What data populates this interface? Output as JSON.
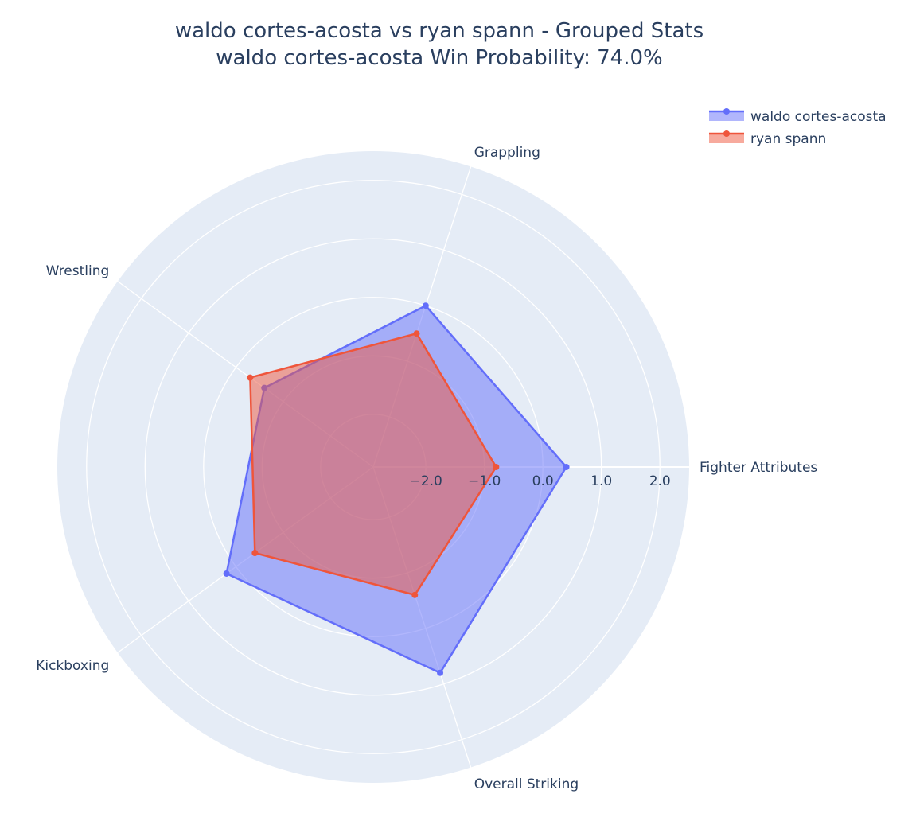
{
  "chart_data": {
    "type": "radar",
    "title": "waldo cortes-acosta vs ryan spann - Grouped Stats",
    "subtitle": "waldo cortes-acosta Win Probability: 74.0%",
    "categories": [
      "Fighter Attributes",
      "Overall Striking",
      "Kickboxing",
      "Wrestling",
      "Grappling"
    ],
    "radial_range": [
      -2.9,
      2.5
    ],
    "radial_ticks": [
      {
        "value": -2.0,
        "label": "−2.0"
      },
      {
        "value": -1.0,
        "label": "−1.0"
      },
      {
        "value": 0.0,
        "label": "0.0"
      },
      {
        "value": 1.0,
        "label": "1.0"
      },
      {
        "value": 2.0,
        "label": "2.0"
      }
    ],
    "series": [
      {
        "name": "waldo cortes-acosta",
        "color": "#636efa",
        "values": [
          0.4,
          0.8,
          0.2,
          -0.6,
          0.0
        ]
      },
      {
        "name": "ryan spann",
        "color": "#ef553b",
        "values": [
          -0.8,
          -0.6,
          -0.4,
          -0.3,
          -0.5
        ]
      }
    ],
    "grid": true,
    "legend": "top-right",
    "background_color": "#e5ecf6"
  }
}
